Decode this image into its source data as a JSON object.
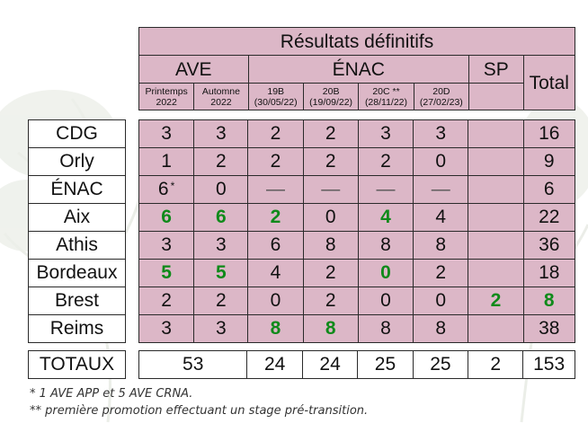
{
  "header": {
    "title": "Résultats définitifs",
    "group_ave": "AVE",
    "group_enac": "ÉNAC",
    "group_sp": "SP",
    "total": "Total",
    "sub_cols": [
      {
        "line1": "Printemps",
        "line2": "2022"
      },
      {
        "line1": "Automne",
        "line2": "2022"
      },
      {
        "line1": "19B",
        "line2": "(30/05/22)"
      },
      {
        "line1": "20B",
        "line2": "(19/09/22)"
      },
      {
        "line1": "20C **",
        "line2": "(28/11/22)"
      },
      {
        "line1": "20D",
        "line2": "(27/02/23)"
      },
      {
        "line1": "",
        "line2": ""
      }
    ]
  },
  "rows": [
    {
      "label": "CDG",
      "cells": [
        "3",
        "3",
        "2",
        "2",
        "3",
        "3",
        "",
        "16"
      ]
    },
    {
      "label": "Orly",
      "cells": [
        "1",
        "2",
        "2",
        "2",
        "2",
        "0",
        "",
        "9"
      ]
    },
    {
      "label": "ÉNAC",
      "cells": [
        "6",
        "0",
        "—",
        "—",
        "—",
        "—",
        "",
        "6"
      ],
      "note_mark": "*"
    },
    {
      "label": "Aix",
      "cells": [
        "6",
        "6",
        "2",
        "0",
        "4",
        "4",
        "",
        "22"
      ]
    },
    {
      "label": "Athis",
      "cells": [
        "3",
        "3",
        "6",
        "8",
        "8",
        "8",
        "",
        "36"
      ]
    },
    {
      "label": "Bordeaux",
      "cells": [
        "5",
        "5",
        "4",
        "2",
        "0",
        "2",
        "",
        "18"
      ]
    },
    {
      "label": "Brest",
      "cells": [
        "2",
        "2",
        "0",
        "2",
        "0",
        "0",
        "2",
        "8"
      ]
    },
    {
      "label": "Reims",
      "cells": [
        "3",
        "3",
        "8",
        "8",
        "8",
        "8",
        "",
        "38"
      ]
    }
  ],
  "totals": {
    "label": "TOTAUX",
    "ave": "53",
    "cells": [
      "24",
      "24",
      "25",
      "25",
      "2",
      "153"
    ]
  },
  "notes": [
    "* 1 AVE APP et 5 AVE CRNA.",
    "** première promotion effectuant un stage pré-transition."
  ],
  "colors": {
    "cell_background": "#dcb7c7",
    "highlight_green": "#0f8a1a"
  }
}
